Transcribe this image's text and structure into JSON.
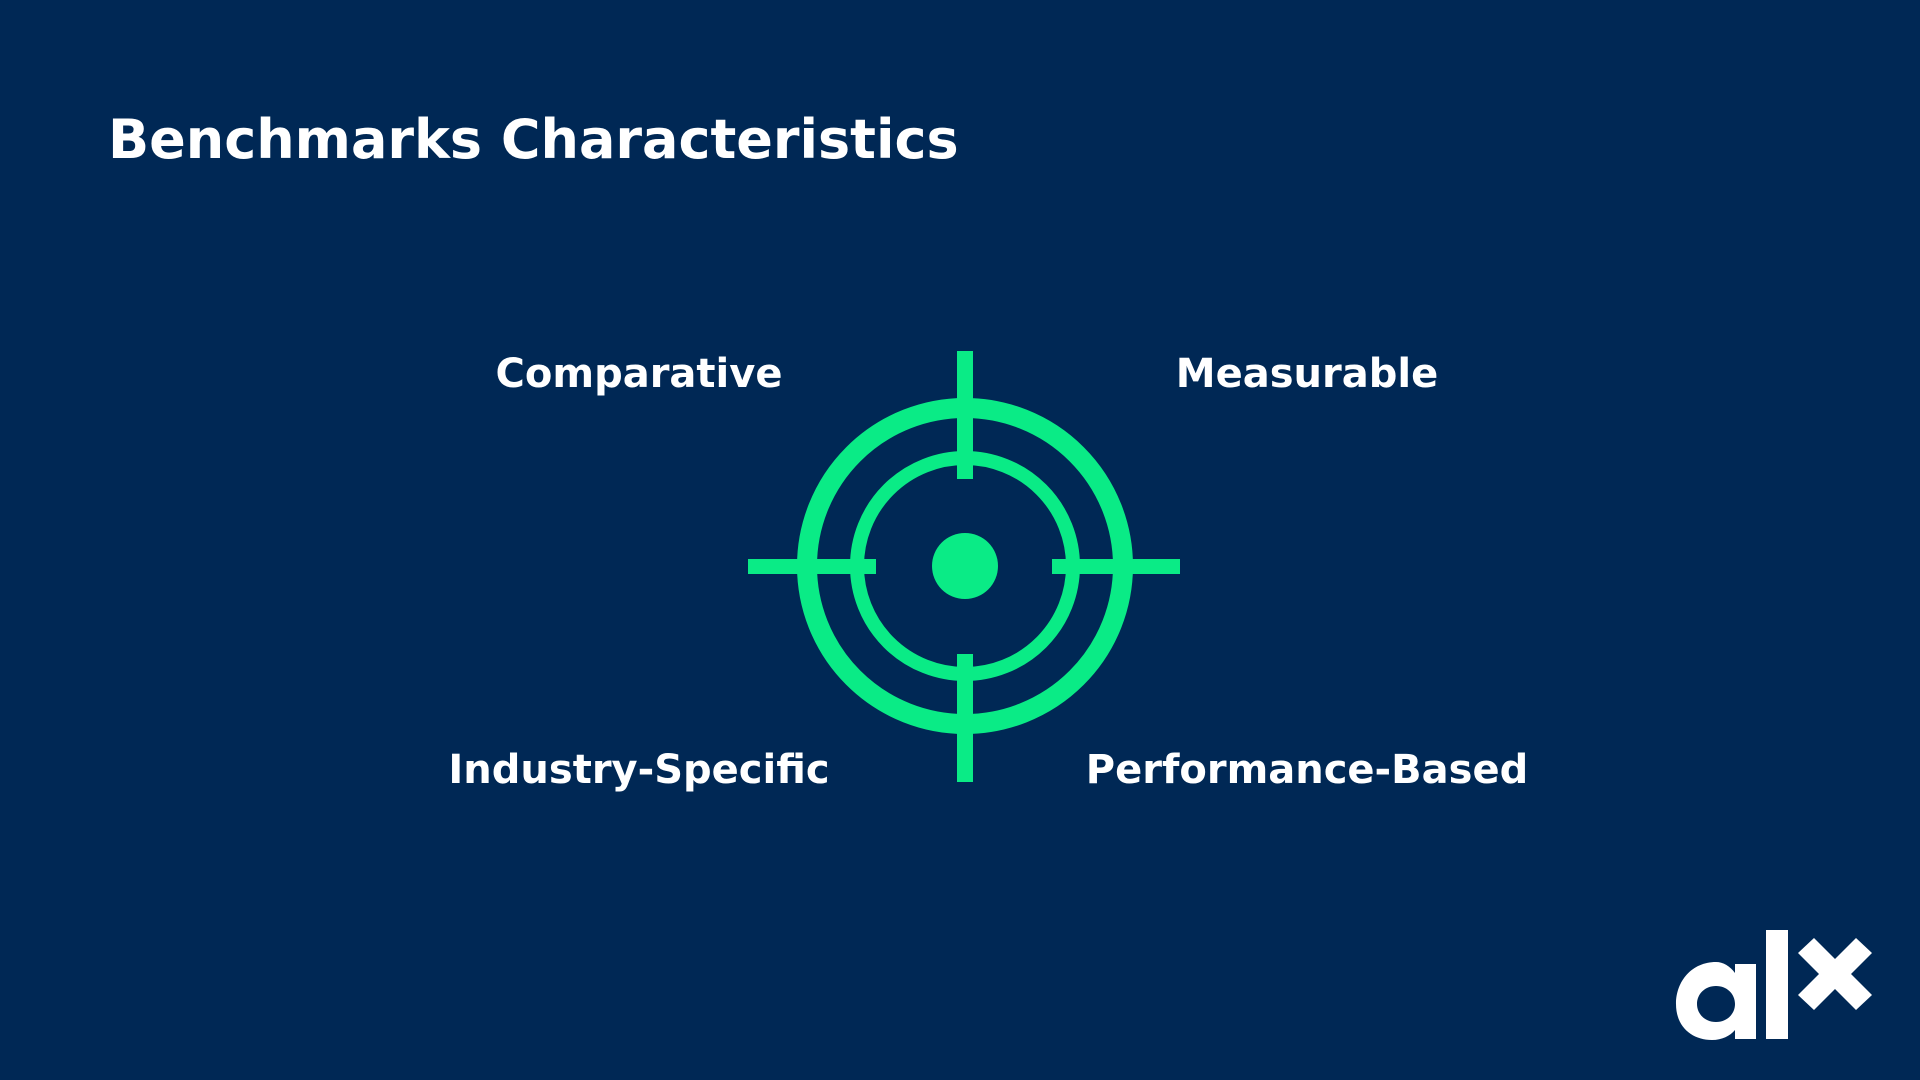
{
  "slide": {
    "title": "Benchmarks Characteristics",
    "background_color": "#002855",
    "accent_color": "#0AEB86"
  },
  "characteristics": [
    "Comparative",
    "Measurable",
    "Industry-Specific",
    "Performance-Based"
  ],
  "icons": {
    "center": "target-crosshair-icon",
    "logo": "alx-logo"
  },
  "logo": {
    "text": "alx"
  }
}
